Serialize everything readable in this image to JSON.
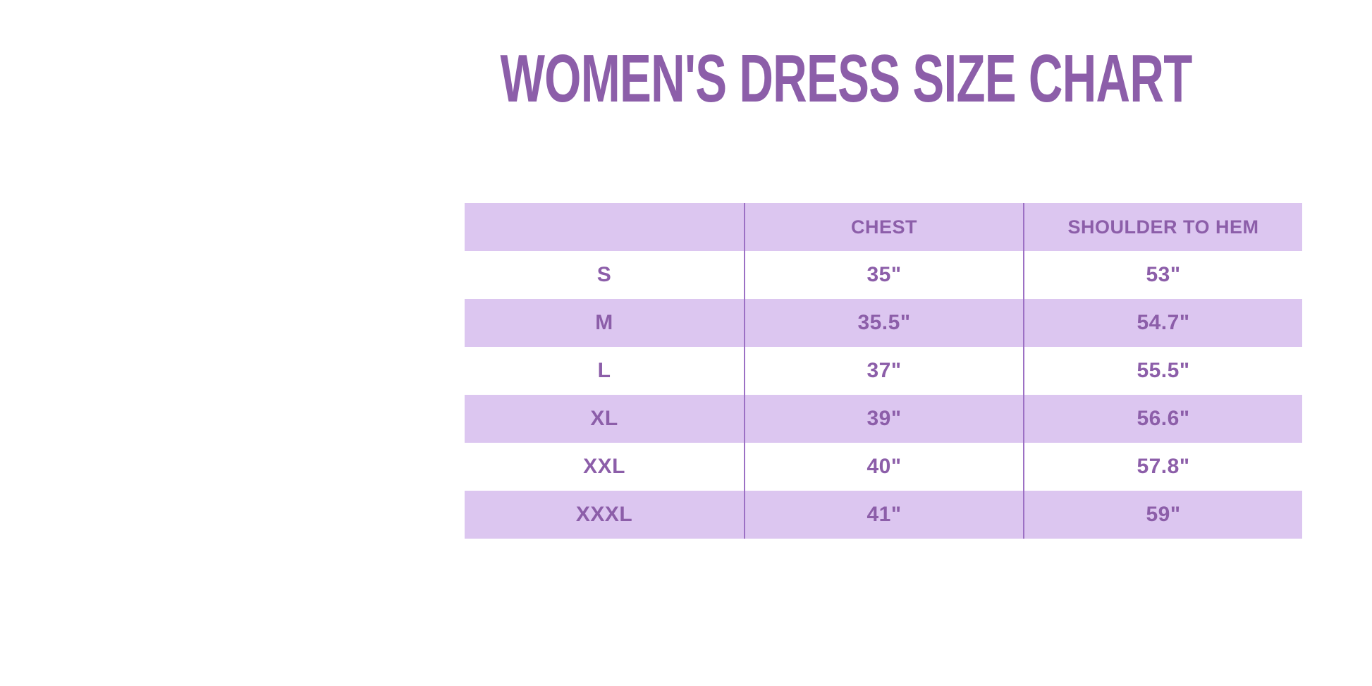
{
  "title": "WOMEN'S DRESS SIZE CHART",
  "colors": {
    "accent_purple": "#8C5EA9",
    "row_lavender": "#DCC6F0",
    "divider_purple": "#9C70C4",
    "background": "#FFFFFF"
  },
  "chart_data": {
    "type": "table",
    "title": "WOMEN'S DRESS SIZE CHART",
    "columns": [
      "",
      "CHEST",
      "SHOULDER TO HEM"
    ],
    "rows": [
      [
        "S",
        "35\"",
        "53\""
      ],
      [
        "M",
        "35.5\"",
        "54.7\""
      ],
      [
        "L",
        "37\"",
        "55.5\""
      ],
      [
        "XL",
        "39\"",
        "56.6\""
      ],
      [
        "XXL",
        "40\"",
        "57.8\""
      ],
      [
        "XXXL",
        "41\"",
        "59\""
      ]
    ],
    "layout": {
      "shaded_rows": [
        "header",
        "M",
        "XL",
        "XXXL"
      ],
      "columns_equal_width": true,
      "outer_border": false
    }
  }
}
